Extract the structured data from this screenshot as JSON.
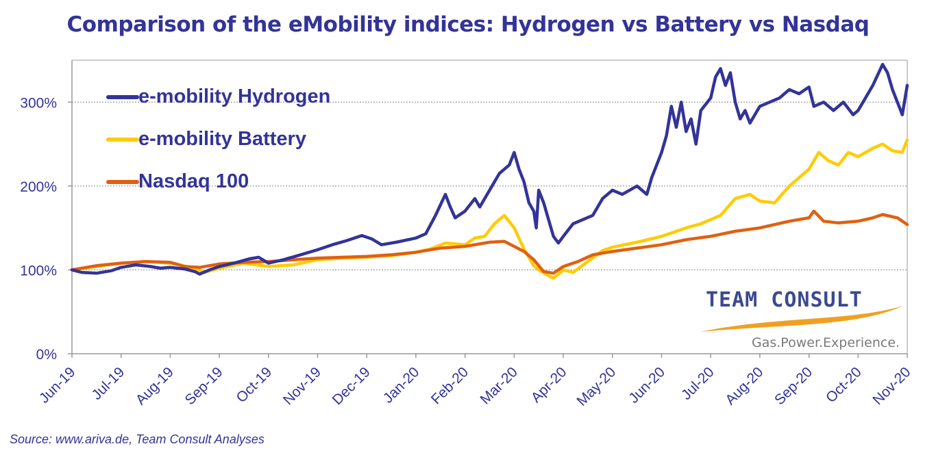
{
  "chart_data": {
    "type": "line",
    "title": "Comparison of the eMobility indices: Hydrogen vs Battery vs Nasdaq",
    "xlabel": "",
    "ylabel": "",
    "x_tick_labels": [
      "Jun-19",
      "Jul-19",
      "Aug-19",
      "Sep-19",
      "Oct-19",
      "Nov-19",
      "Dec-19",
      "Jan-20",
      "Feb-20",
      "Mar-20",
      "Apr-20",
      "May-20",
      "Jun-20",
      "Jul-20",
      "Aug-20",
      "Sep-20",
      "Oct-20",
      "Nov-20"
    ],
    "y_ticks": [
      0,
      100,
      200,
      300
    ],
    "y_tick_labels": [
      "0%",
      "100%",
      "200%",
      "300%"
    ],
    "ylim": [
      0,
      350
    ],
    "y_unit": "%",
    "grid": "horizontal dashed at 100, 200, 300",
    "legend_position": "top-left",
    "series": [
      {
        "name": "e-mobility Hydrogen",
        "color": "#333399",
        "points": [
          [
            0,
            100
          ],
          [
            0.2,
            97
          ],
          [
            0.5,
            96
          ],
          [
            0.8,
            99
          ],
          [
            1,
            103
          ],
          [
            1.3,
            106
          ],
          [
            1.6,
            104
          ],
          [
            1.8,
            102
          ],
          [
            2,
            103
          ],
          [
            2.3,
            101
          ],
          [
            2.5,
            98
          ],
          [
            2.6,
            95
          ],
          [
            2.8,
            100
          ],
          [
            3,
            104
          ],
          [
            3.3,
            108
          ],
          [
            3.6,
            113
          ],
          [
            3.8,
            115
          ],
          [
            4,
            108
          ],
          [
            4.3,
            112
          ],
          [
            4.6,
            117
          ],
          [
            5,
            124
          ],
          [
            5.3,
            130
          ],
          [
            5.6,
            135
          ],
          [
            5.9,
            141
          ],
          [
            6.1,
            137
          ],
          [
            6.3,
            130
          ],
          [
            6.6,
            133
          ],
          [
            7,
            138
          ],
          [
            7.2,
            143
          ],
          [
            7.4,
            165
          ],
          [
            7.6,
            190
          ],
          [
            7.7,
            175
          ],
          [
            7.8,
            162
          ],
          [
            8,
            170
          ],
          [
            8.2,
            185
          ],
          [
            8.3,
            175
          ],
          [
            8.5,
            195
          ],
          [
            8.7,
            215
          ],
          [
            8.9,
            225
          ],
          [
            9,
            240
          ],
          [
            9.1,
            220
          ],
          [
            9.2,
            205
          ],
          [
            9.3,
            180
          ],
          [
            9.4,
            170
          ],
          [
            9.45,
            150
          ],
          [
            9.5,
            195
          ],
          [
            9.6,
            180
          ],
          [
            9.8,
            140
          ],
          [
            9.9,
            132
          ],
          [
            10,
            140
          ],
          [
            10.2,
            155
          ],
          [
            10.4,
            160
          ],
          [
            10.6,
            165
          ],
          [
            10.8,
            185
          ],
          [
            11,
            195
          ],
          [
            11.2,
            190
          ],
          [
            11.5,
            200
          ],
          [
            11.7,
            190
          ],
          [
            11.8,
            210
          ],
          [
            12,
            240
          ],
          [
            12.1,
            260
          ],
          [
            12.2,
            295
          ],
          [
            12.3,
            270
          ],
          [
            12.4,
            300
          ],
          [
            12.5,
            265
          ],
          [
            12.6,
            280
          ],
          [
            12.7,
            250
          ],
          [
            12.8,
            290
          ],
          [
            13,
            305
          ],
          [
            13.1,
            330
          ],
          [
            13.2,
            340
          ],
          [
            13.3,
            320
          ],
          [
            13.4,
            335
          ],
          [
            13.5,
            300
          ],
          [
            13.6,
            280
          ],
          [
            13.7,
            290
          ],
          [
            13.8,
            275
          ],
          [
            14,
            295
          ],
          [
            14.2,
            300
          ],
          [
            14.4,
            305
          ],
          [
            14.6,
            315
          ],
          [
            14.8,
            310
          ],
          [
            15,
            318
          ],
          [
            15.1,
            295
          ],
          [
            15.3,
            300
          ],
          [
            15.5,
            290
          ],
          [
            15.7,
            300
          ],
          [
            15.9,
            285
          ],
          [
            16,
            290
          ],
          [
            16.1,
            300
          ],
          [
            16.3,
            320
          ],
          [
            16.5,
            345
          ],
          [
            16.6,
            335
          ],
          [
            16.7,
            315
          ],
          [
            16.8,
            300
          ],
          [
            16.9,
            285
          ],
          [
            17,
            320
          ]
        ]
      },
      {
        "name": "e-mobility Battery",
        "color": "#ffcc00",
        "points": [
          [
            0,
            100
          ],
          [
            0.5,
            104
          ],
          [
            1,
            108
          ],
          [
            1.5,
            110
          ],
          [
            2,
            108
          ],
          [
            2.5,
            102
          ],
          [
            2.7,
            97
          ],
          [
            3,
            102
          ],
          [
            3.5,
            108
          ],
          [
            4,
            104
          ],
          [
            4.5,
            106
          ],
          [
            5,
            112
          ],
          [
            5.5,
            114
          ],
          [
            6,
            115
          ],
          [
            6.5,
            117
          ],
          [
            7,
            121
          ],
          [
            7.3,
            125
          ],
          [
            7.6,
            132
          ],
          [
            8,
            130
          ],
          [
            8.2,
            138
          ],
          [
            8.4,
            140
          ],
          [
            8.6,
            155
          ],
          [
            8.8,
            165
          ],
          [
            9,
            150
          ],
          [
            9.2,
            125
          ],
          [
            9.4,
            105
          ],
          [
            9.5,
            100
          ],
          [
            9.7,
            93
          ],
          [
            9.8,
            90
          ],
          [
            10,
            100
          ],
          [
            10.2,
            97
          ],
          [
            10.5,
            110
          ],
          [
            10.8,
            123
          ],
          [
            11,
            127
          ],
          [
            11.5,
            133
          ],
          [
            12,
            140
          ],
          [
            12.5,
            150
          ],
          [
            12.8,
            155
          ],
          [
            13,
            160
          ],
          [
            13.2,
            165
          ],
          [
            13.5,
            185
          ],
          [
            13.8,
            190
          ],
          [
            14,
            182
          ],
          [
            14.3,
            180
          ],
          [
            14.6,
            200
          ],
          [
            15,
            220
          ],
          [
            15.2,
            240
          ],
          [
            15.4,
            230
          ],
          [
            15.6,
            225
          ],
          [
            15.8,
            240
          ],
          [
            16,
            235
          ],
          [
            16.3,
            245
          ],
          [
            16.5,
            250
          ],
          [
            16.7,
            242
          ],
          [
            16.9,
            240
          ],
          [
            17,
            255
          ]
        ]
      },
      {
        "name": "Nasdaq 100",
        "color": "#e06010",
        "points": [
          [
            0,
            100
          ],
          [
            0.5,
            105
          ],
          [
            1,
            108
          ],
          [
            1.5,
            110
          ],
          [
            2,
            109
          ],
          [
            2.3,
            104
          ],
          [
            2.6,
            103
          ],
          [
            3,
            107
          ],
          [
            3.5,
            109
          ],
          [
            4,
            110
          ],
          [
            4.5,
            112
          ],
          [
            5,
            114
          ],
          [
            5.5,
            115
          ],
          [
            6,
            116
          ],
          [
            6.5,
            118
          ],
          [
            7,
            121
          ],
          [
            7.5,
            126
          ],
          [
            8,
            128
          ],
          [
            8.5,
            133
          ],
          [
            8.8,
            134
          ],
          [
            9,
            128
          ],
          [
            9.2,
            122
          ],
          [
            9.4,
            112
          ],
          [
            9.6,
            98
          ],
          [
            9.8,
            96
          ],
          [
            10,
            104
          ],
          [
            10.3,
            110
          ],
          [
            10.6,
            118
          ],
          [
            11,
            122
          ],
          [
            11.5,
            126
          ],
          [
            12,
            130
          ],
          [
            12.5,
            136
          ],
          [
            13,
            140
          ],
          [
            13.5,
            146
          ],
          [
            14,
            150
          ],
          [
            14.3,
            154
          ],
          [
            14.6,
            158
          ],
          [
            15,
            162
          ],
          [
            15.1,
            170
          ],
          [
            15.3,
            158
          ],
          [
            15.6,
            156
          ],
          [
            16,
            158
          ],
          [
            16.3,
            162
          ],
          [
            16.5,
            166
          ],
          [
            16.8,
            162
          ],
          [
            17,
            154
          ]
        ]
      }
    ]
  },
  "logo": {
    "name": "TEAM CONSULT",
    "tagline": "Gas.Power.Experience.",
    "swoosh_color": "#f0a020"
  },
  "source_note": "Source: www.ariva.de, Team Consult Analyses"
}
